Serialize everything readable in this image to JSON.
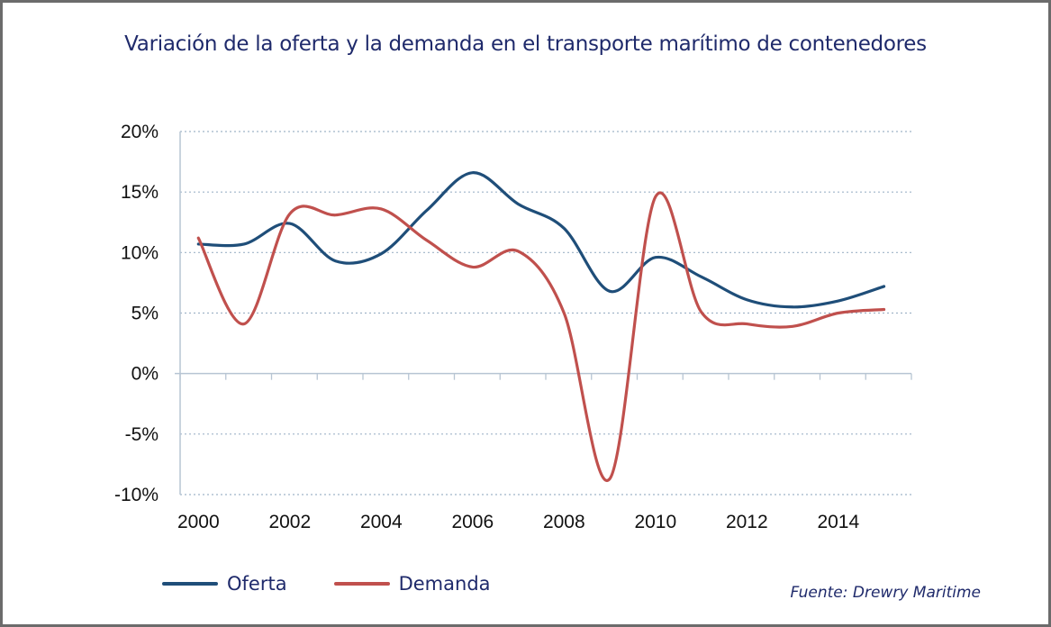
{
  "chart_data": {
    "type": "line",
    "title": "Variación de la oferta y la demanda en el transporte marítimo de contenedores",
    "xlabel": "",
    "ylabel": "",
    "x": [
      2000,
      2001,
      2002,
      2003,
      2004,
      2005,
      2006,
      2007,
      2008,
      2009,
      2010,
      2011,
      2012,
      2013,
      2014,
      2015
    ],
    "x_tick_labels": [
      "2000",
      "2002",
      "2004",
      "2006",
      "2008",
      "2010",
      "2012",
      "2014"
    ],
    "y_tick_labels": [
      "20%",
      "15%",
      "10%",
      "5%",
      "0%",
      "-5%",
      "-10%"
    ],
    "y_ticks": [
      20,
      15,
      10,
      5,
      0,
      -5,
      -10
    ],
    "ylim": [
      -10,
      20
    ],
    "xlim": [
      1999.6,
      2015.6
    ],
    "grid": true,
    "legend_position": "bottom-left",
    "series": [
      {
        "name": "Oferta",
        "color": "#1f4e79",
        "values": [
          10.7,
          10.7,
          12.4,
          9.3,
          9.9,
          13.5,
          16.6,
          14.0,
          12.0,
          6.8,
          9.6,
          8.0,
          6.1,
          5.5,
          6.0,
          7.2
        ]
      },
      {
        "name": "Demanda",
        "color": "#c0504d",
        "values": [
          11.2,
          4.1,
          13.2,
          13.1,
          13.6,
          11.0,
          8.8,
          10.1,
          5.0,
          -8.7,
          14.6,
          5.1,
          4.1,
          3.9,
          5.0,
          5.3
        ]
      }
    ]
  },
  "legend": {
    "items": [
      {
        "label": "Oferta",
        "color": "#1f4e79"
      },
      {
        "label": "Demanda",
        "color": "#c0504d"
      }
    ]
  },
  "source": "Fuente: Drewry Maritime",
  "colors": {
    "title": "#1f2a6b",
    "grid": "#9fb3c8",
    "axis": "#b7c5d3"
  }
}
